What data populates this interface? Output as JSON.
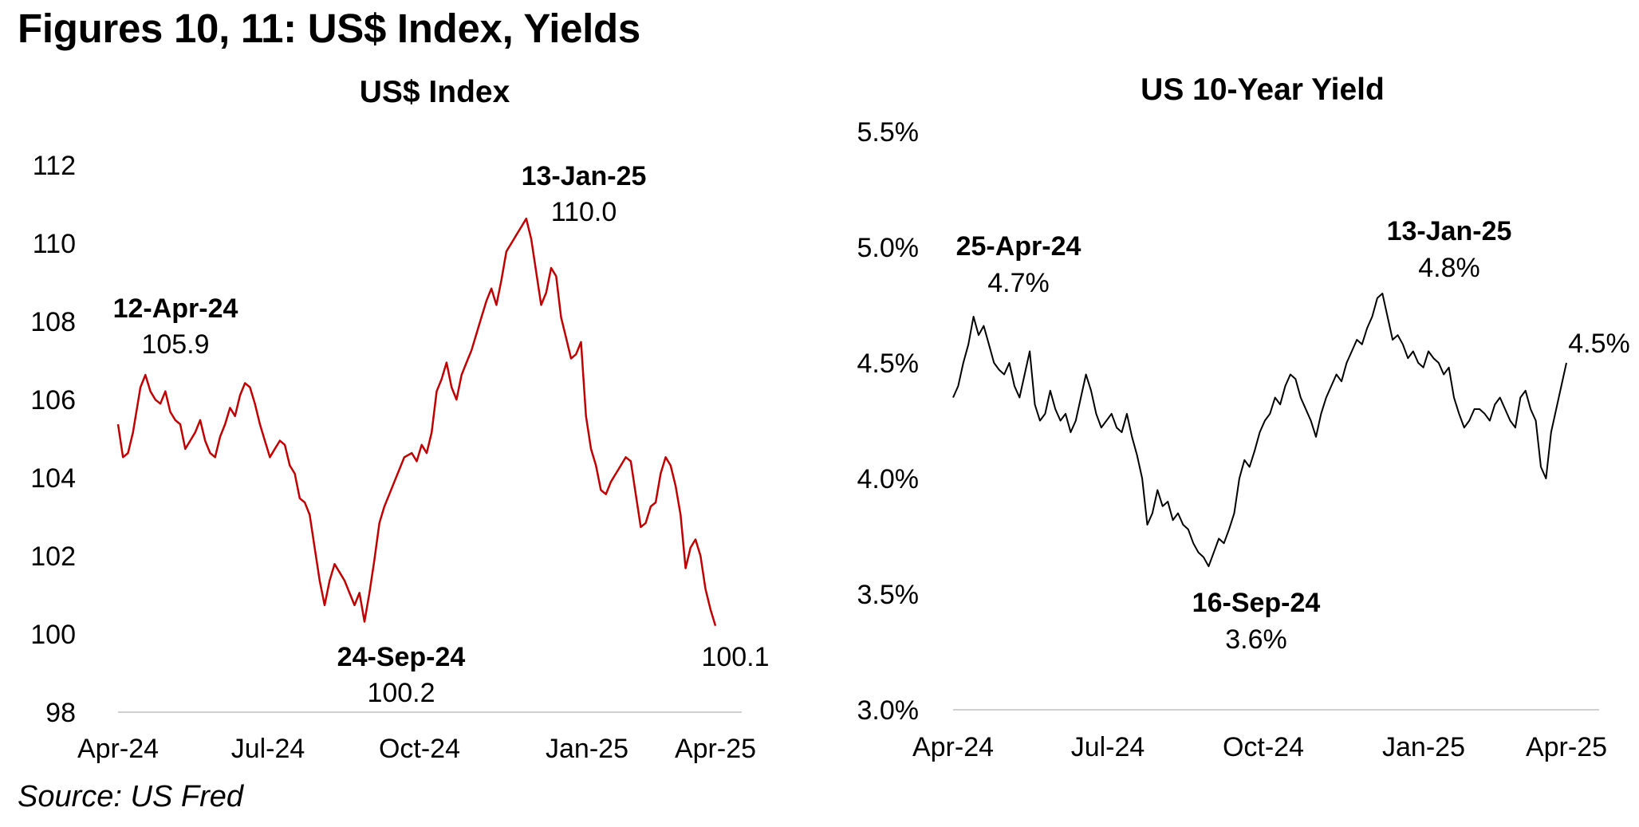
{
  "header": {
    "title": "Figures 10, 11: US$ Index, Yields"
  },
  "footer": {
    "source": "Source: US Fred"
  },
  "chart_data": [
    {
      "type": "line",
      "title": "US$ Index",
      "xlabel": "",
      "ylabel": "",
      "color": "#c00000",
      "grid": false,
      "ylim": [
        98,
        112
      ],
      "yticks": [
        98,
        100,
        102,
        104,
        106,
        108,
        110,
        112
      ],
      "ytick_labels": [
        "98",
        "100",
        "102",
        "104",
        "106",
        "108",
        "110",
        "112"
      ],
      "xlim": [
        0,
        12
      ],
      "xticks": [
        0,
        3,
        6,
        9,
        12
      ],
      "xtick_labels": [
        "Apr-24",
        "Jul-24",
        "Oct-24",
        "Jan-25",
        "Apr-25"
      ],
      "x_unit": "months since Apr-24",
      "series": [
        {
          "name": "US$ Index",
          "x": [
            0.0,
            0.1,
            0.2,
            0.3,
            0.45,
            0.55,
            0.65,
            0.75,
            0.85,
            0.95,
            1.05,
            1.15,
            1.25,
            1.35,
            1.45,
            1.55,
            1.65,
            1.75,
            1.85,
            1.95,
            2.05,
            2.15,
            2.25,
            2.35,
            2.45,
            2.55,
            2.65,
            2.75,
            2.85,
            2.95,
            3.05,
            3.15,
            3.25,
            3.35,
            3.45,
            3.55,
            3.65,
            3.75,
            3.85,
            3.95,
            4.05,
            4.15,
            4.25,
            4.35,
            4.45,
            4.55,
            4.65,
            4.75,
            4.85,
            4.95,
            5.05,
            5.15,
            5.25,
            5.35,
            5.45,
            5.55,
            5.65,
            5.75,
            5.9,
            6.0,
            6.1,
            6.2,
            6.3,
            6.4,
            6.5,
            6.6,
            6.7,
            6.8,
            6.9,
            7.0,
            7.1,
            7.2,
            7.3,
            7.4,
            7.5,
            7.6,
            7.7,
            7.8,
            7.9,
            8.0,
            8.1,
            8.2,
            8.3,
            8.4,
            8.5,
            8.6,
            8.7,
            8.8,
            8.9,
            9.0,
            9.1,
            9.2,
            9.3,
            9.4,
            9.5,
            9.6,
            9.7,
            9.8,
            9.9,
            10.0,
            10.1,
            10.2,
            10.3,
            10.4,
            10.5,
            10.6,
            10.7,
            10.8,
            10.9,
            11.0,
            11.1,
            11.2,
            11.3,
            11.4,
            11.5,
            11.6,
            11.7,
            11.8,
            11.9,
            11.95,
            12.0
          ],
          "values": [
            105.0,
            104.2,
            104.3,
            104.8,
            105.9,
            106.2,
            105.8,
            105.6,
            105.5,
            105.8,
            105.3,
            105.1,
            105.0,
            104.4,
            104.6,
            104.8,
            105.1,
            104.6,
            104.3,
            104.2,
            104.7,
            105.0,
            105.4,
            105.2,
            105.7,
            106.0,
            105.9,
            105.5,
            105.0,
            104.6,
            104.2,
            104.4,
            104.6,
            104.5,
            104.0,
            103.8,
            103.2,
            103.1,
            102.8,
            102.0,
            101.2,
            100.6,
            101.2,
            101.6,
            101.4,
            101.2,
            100.9,
            100.6,
            100.9,
            100.2,
            100.9,
            101.7,
            102.6,
            103.0,
            103.3,
            103.6,
            103.9,
            104.2,
            104.3,
            104.1,
            104.5,
            104.3,
            104.8,
            105.8,
            106.1,
            106.5,
            105.9,
            105.6,
            106.2,
            106.5,
            106.8,
            107.2,
            107.6,
            108.0,
            108.3,
            107.9,
            108.5,
            109.2,
            109.4,
            109.6,
            109.8,
            110.0,
            109.5,
            108.7,
            107.9,
            108.2,
            108.8,
            108.6,
            107.6,
            107.1,
            106.6,
            106.7,
            107.0,
            105.2,
            104.4,
            104.0,
            103.4,
            103.3,
            103.6,
            103.8,
            104.0,
            104.2,
            104.1,
            103.3,
            102.5,
            102.6,
            103.0,
            103.1,
            103.8,
            104.2,
            104.0,
            103.5,
            102.8,
            101.5,
            102.0,
            102.2,
            101.8,
            101.0,
            100.5,
            100.3,
            100.1
          ]
        }
      ],
      "annotations": [
        {
          "date": "12-Apr-24",
          "value": "105.9",
          "x": 0.45,
          "y": 105.9
        },
        {
          "date": "24-Sep-24",
          "value": "100.2",
          "x": 4.95,
          "y": 100.2
        },
        {
          "date": "13-Jan-25",
          "value": "110.0",
          "x": 8.2,
          "y": 110.0
        },
        {
          "date": "",
          "value": "100.1",
          "x": 12.0,
          "y": 100.1
        }
      ]
    },
    {
      "type": "line",
      "title": "US 10-Year Yield",
      "xlabel": "",
      "ylabel": "",
      "color": "#000000",
      "grid": false,
      "ylim": [
        3.0,
        5.5
      ],
      "yticks": [
        3.0,
        3.5,
        4.0,
        4.5,
        5.0,
        5.5
      ],
      "ytick_labels": [
        "3.0%",
        "3.5%",
        "4.0%",
        "4.5%",
        "5.0%",
        "5.5%"
      ],
      "xlim": [
        0,
        12
      ],
      "xticks": [
        0,
        3,
        6,
        9,
        12
      ],
      "xtick_labels": [
        "Apr-24",
        "Jul-24",
        "Oct-24",
        "Jan-25",
        "Apr-25"
      ],
      "x_unit": "months since Apr-24",
      "series": [
        {
          "name": "US 10-Year Yield",
          "x": [
            0.0,
            0.1,
            0.2,
            0.3,
            0.4,
            0.5,
            0.6,
            0.7,
            0.8,
            0.9,
            1.0,
            1.1,
            1.2,
            1.3,
            1.4,
            1.5,
            1.6,
            1.7,
            1.8,
            1.9,
            2.0,
            2.1,
            2.2,
            2.3,
            2.4,
            2.5,
            2.6,
            2.7,
            2.8,
            2.9,
            3.0,
            3.1,
            3.2,
            3.3,
            3.4,
            3.5,
            3.6,
            3.7,
            3.8,
            3.9,
            4.0,
            4.1,
            4.2,
            4.3,
            4.4,
            4.5,
            4.6,
            4.7,
            4.8,
            4.9,
            5.0,
            5.1,
            5.2,
            5.3,
            5.4,
            5.5,
            5.6,
            5.7,
            5.8,
            5.9,
            6.0,
            6.1,
            6.2,
            6.3,
            6.4,
            6.5,
            6.6,
            6.7,
            6.8,
            6.9,
            7.0,
            7.1,
            7.2,
            7.3,
            7.4,
            7.5,
            7.6,
            7.7,
            7.8,
            7.9,
            8.0,
            8.1,
            8.2,
            8.3,
            8.4,
            8.5,
            8.6,
            8.7,
            8.8,
            8.9,
            9.0,
            9.1,
            9.2,
            9.3,
            9.4,
            9.5,
            9.6,
            9.7,
            9.8,
            9.9,
            10.0,
            10.1,
            10.2,
            10.3,
            10.4,
            10.5,
            10.6,
            10.7,
            10.8,
            10.9,
            11.0,
            11.1,
            11.2,
            11.3,
            11.4,
            11.5,
            11.6,
            11.7,
            11.8,
            11.9,
            12.0
          ],
          "values": [
            4.35,
            4.4,
            4.5,
            4.58,
            4.7,
            4.62,
            4.66,
            4.58,
            4.5,
            4.47,
            4.45,
            4.5,
            4.4,
            4.35,
            4.45,
            4.55,
            4.32,
            4.25,
            4.28,
            4.38,
            4.3,
            4.25,
            4.28,
            4.2,
            4.25,
            4.35,
            4.45,
            4.38,
            4.28,
            4.22,
            4.25,
            4.28,
            4.22,
            4.2,
            4.28,
            4.18,
            4.1,
            4.0,
            3.8,
            3.85,
            3.95,
            3.88,
            3.9,
            3.82,
            3.85,
            3.8,
            3.78,
            3.72,
            3.68,
            3.66,
            3.62,
            3.68,
            3.74,
            3.72,
            3.78,
            3.85,
            4.0,
            4.08,
            4.05,
            4.12,
            4.2,
            4.25,
            4.28,
            4.35,
            4.32,
            4.4,
            4.45,
            4.43,
            4.35,
            4.3,
            4.25,
            4.18,
            4.28,
            4.35,
            4.4,
            4.45,
            4.42,
            4.5,
            4.55,
            4.6,
            4.58,
            4.65,
            4.7,
            4.78,
            4.8,
            4.7,
            4.6,
            4.62,
            4.58,
            4.52,
            4.55,
            4.5,
            4.48,
            4.55,
            4.52,
            4.5,
            4.45,
            4.48,
            4.35,
            4.28,
            4.22,
            4.25,
            4.3,
            4.3,
            4.28,
            4.25,
            4.32,
            4.35,
            4.3,
            4.25,
            4.22,
            4.35,
            4.38,
            4.3,
            4.25,
            4.05,
            4.0,
            4.2,
            4.3,
            4.4,
            4.5
          ]
        }
      ],
      "annotations": [
        {
          "date": "25-Apr-24",
          "value": "4.7%",
          "x": 0.4,
          "y": 4.7
        },
        {
          "date": "16-Sep-24",
          "value": "3.6%",
          "x": 5.0,
          "y": 3.62
        },
        {
          "date": "13-Jan-25",
          "value": "4.8%",
          "x": 8.4,
          "y": 4.8
        },
        {
          "date": "",
          "value": "4.5%",
          "x": 12.0,
          "y": 4.5
        }
      ]
    }
  ]
}
